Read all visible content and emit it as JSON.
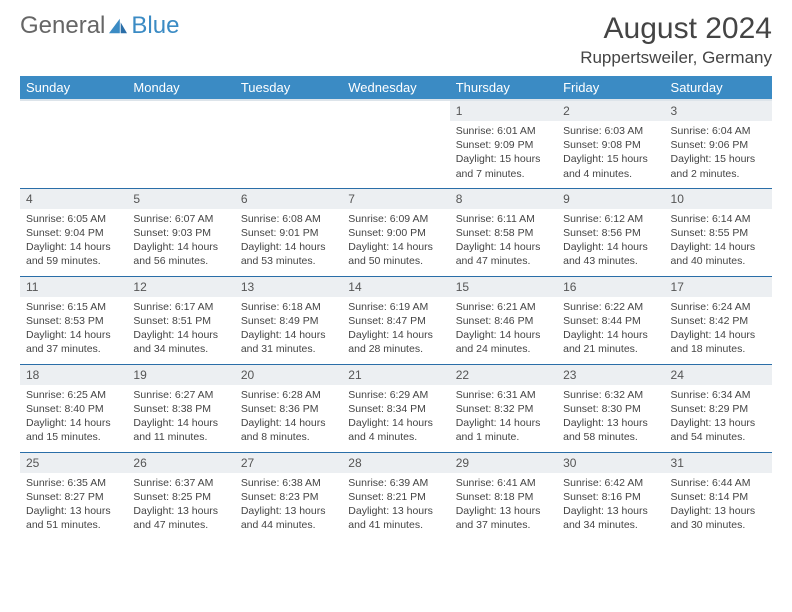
{
  "logo": {
    "text1": "General",
    "text2": "Blue"
  },
  "title": "August 2024",
  "location": "Ruppertsweiler, Germany",
  "colors": {
    "header_bg": "#3b8bc4",
    "header_fg": "#ffffff",
    "daynum_bg": "#eceff2",
    "rule": "#2a6ea8",
    "text": "#444444"
  },
  "weekdays": [
    "Sunday",
    "Monday",
    "Tuesday",
    "Wednesday",
    "Thursday",
    "Friday",
    "Saturday"
  ],
  "weeks": [
    [
      null,
      null,
      null,
      null,
      {
        "n": "1",
        "sr": "6:01 AM",
        "ss": "9:09 PM",
        "dl": "15 hours and 7 minutes."
      },
      {
        "n": "2",
        "sr": "6:03 AM",
        "ss": "9:08 PM",
        "dl": "15 hours and 4 minutes."
      },
      {
        "n": "3",
        "sr": "6:04 AM",
        "ss": "9:06 PM",
        "dl": "15 hours and 2 minutes."
      }
    ],
    [
      {
        "n": "4",
        "sr": "6:05 AM",
        "ss": "9:04 PM",
        "dl": "14 hours and 59 minutes."
      },
      {
        "n": "5",
        "sr": "6:07 AM",
        "ss": "9:03 PM",
        "dl": "14 hours and 56 minutes."
      },
      {
        "n": "6",
        "sr": "6:08 AM",
        "ss": "9:01 PM",
        "dl": "14 hours and 53 minutes."
      },
      {
        "n": "7",
        "sr": "6:09 AM",
        "ss": "9:00 PM",
        "dl": "14 hours and 50 minutes."
      },
      {
        "n": "8",
        "sr": "6:11 AM",
        "ss": "8:58 PM",
        "dl": "14 hours and 47 minutes."
      },
      {
        "n": "9",
        "sr": "6:12 AM",
        "ss": "8:56 PM",
        "dl": "14 hours and 43 minutes."
      },
      {
        "n": "10",
        "sr": "6:14 AM",
        "ss": "8:55 PM",
        "dl": "14 hours and 40 minutes."
      }
    ],
    [
      {
        "n": "11",
        "sr": "6:15 AM",
        "ss": "8:53 PM",
        "dl": "14 hours and 37 minutes."
      },
      {
        "n": "12",
        "sr": "6:17 AM",
        "ss": "8:51 PM",
        "dl": "14 hours and 34 minutes."
      },
      {
        "n": "13",
        "sr": "6:18 AM",
        "ss": "8:49 PM",
        "dl": "14 hours and 31 minutes."
      },
      {
        "n": "14",
        "sr": "6:19 AM",
        "ss": "8:47 PM",
        "dl": "14 hours and 28 minutes."
      },
      {
        "n": "15",
        "sr": "6:21 AM",
        "ss": "8:46 PM",
        "dl": "14 hours and 24 minutes."
      },
      {
        "n": "16",
        "sr": "6:22 AM",
        "ss": "8:44 PM",
        "dl": "14 hours and 21 minutes."
      },
      {
        "n": "17",
        "sr": "6:24 AM",
        "ss": "8:42 PM",
        "dl": "14 hours and 18 minutes."
      }
    ],
    [
      {
        "n": "18",
        "sr": "6:25 AM",
        "ss": "8:40 PM",
        "dl": "14 hours and 15 minutes."
      },
      {
        "n": "19",
        "sr": "6:27 AM",
        "ss": "8:38 PM",
        "dl": "14 hours and 11 minutes."
      },
      {
        "n": "20",
        "sr": "6:28 AM",
        "ss": "8:36 PM",
        "dl": "14 hours and 8 minutes."
      },
      {
        "n": "21",
        "sr": "6:29 AM",
        "ss": "8:34 PM",
        "dl": "14 hours and 4 minutes."
      },
      {
        "n": "22",
        "sr": "6:31 AM",
        "ss": "8:32 PM",
        "dl": "14 hours and 1 minute."
      },
      {
        "n": "23",
        "sr": "6:32 AM",
        "ss": "8:30 PM",
        "dl": "13 hours and 58 minutes."
      },
      {
        "n": "24",
        "sr": "6:34 AM",
        "ss": "8:29 PM",
        "dl": "13 hours and 54 minutes."
      }
    ],
    [
      {
        "n": "25",
        "sr": "6:35 AM",
        "ss": "8:27 PM",
        "dl": "13 hours and 51 minutes."
      },
      {
        "n": "26",
        "sr": "6:37 AM",
        "ss": "8:25 PM",
        "dl": "13 hours and 47 minutes."
      },
      {
        "n": "27",
        "sr": "6:38 AM",
        "ss": "8:23 PM",
        "dl": "13 hours and 44 minutes."
      },
      {
        "n": "28",
        "sr": "6:39 AM",
        "ss": "8:21 PM",
        "dl": "13 hours and 41 minutes."
      },
      {
        "n": "29",
        "sr": "6:41 AM",
        "ss": "8:18 PM",
        "dl": "13 hours and 37 minutes."
      },
      {
        "n": "30",
        "sr": "6:42 AM",
        "ss": "8:16 PM",
        "dl": "13 hours and 34 minutes."
      },
      {
        "n": "31",
        "sr": "6:44 AM",
        "ss": "8:14 PM",
        "dl": "13 hours and 30 minutes."
      }
    ]
  ],
  "labels": {
    "sunrise": "Sunrise: ",
    "sunset": "Sunset: ",
    "daylight": "Daylight: "
  }
}
